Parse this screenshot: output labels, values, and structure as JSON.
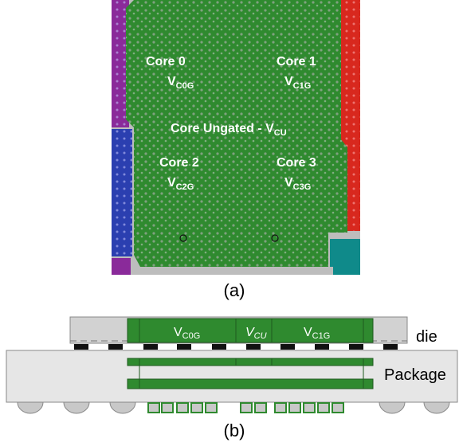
{
  "panel_a": {
    "caption": "(a)",
    "regions": [
      {
        "name": "Core 0",
        "v_main": "V",
        "v_sub": "C0G"
      },
      {
        "name": "Core 1",
        "v_main": "V",
        "v_sub": "C1G"
      },
      {
        "name": "Core 2",
        "v_main": "V",
        "v_sub": "C2G"
      },
      {
        "name": "Core 3",
        "v_main": "V",
        "v_sub": "C3G"
      }
    ],
    "ungated": {
      "text": "Core Ungated - V",
      "sub": "CU"
    }
  },
  "panel_b": {
    "caption": "(b)",
    "die_label": "die",
    "package_label": "Package",
    "rails": [
      {
        "main": "V",
        "sub": "C0G"
      },
      {
        "main": "V",
        "sub": "CU"
      },
      {
        "main": "V",
        "sub": "C1G"
      }
    ]
  },
  "colors": {
    "core_green": "#2f8a2f",
    "dark_green": "#1f6a1f",
    "purple": "#8a2a9a",
    "blue": "#2b3fb0",
    "red": "#d8281e",
    "teal": "#0f8a8a",
    "die_gray": "#d2d2d2",
    "package_gray": "#e6e6e6"
  }
}
